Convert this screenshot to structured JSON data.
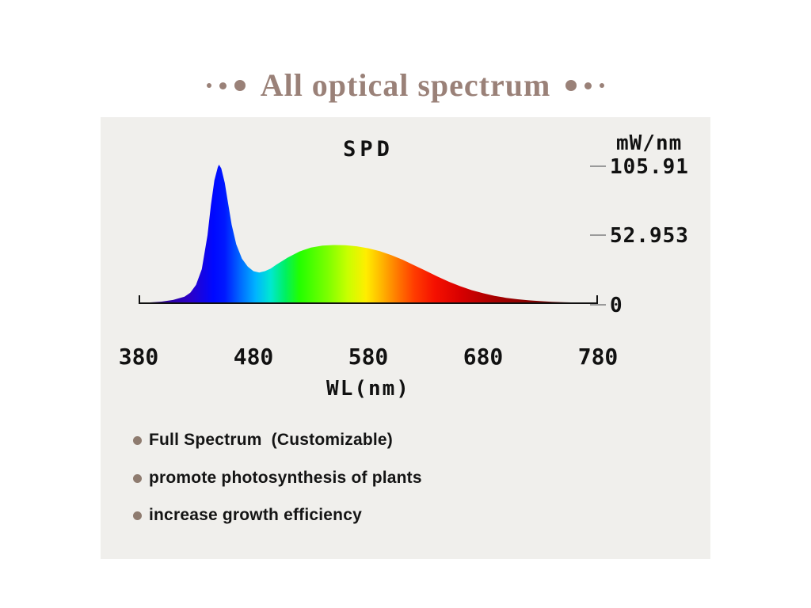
{
  "page": {
    "title": "All optical spectrum"
  },
  "chart": {
    "title": "SPD",
    "unit_label": "mW/nm",
    "xlabel": "WL(nm)",
    "x_ticks": [
      "380",
      "480",
      "580",
      "680",
      "780"
    ],
    "y_ticks": [
      "105.91",
      "52.953",
      "0"
    ]
  },
  "bullets": [
    {
      "label": "Full Spectrum  (Customizable)"
    },
    {
      "label": "promote photosynthesis of plants"
    },
    {
      "label": "increase growth efficiency"
    }
  ],
  "colors": {
    "title_accent": "#9a8178",
    "bullet_dot": "#8e7b6f",
    "panel_background": "#f0efec",
    "axis": "#111111"
  },
  "chart_data": {
    "type": "area",
    "title": "SPD",
    "xlabel": "WL(nm)",
    "ylabel": "mW/nm",
    "xlim": [
      380,
      780
    ],
    "ylim": [
      0,
      105.91
    ],
    "x_tick_values": [
      380,
      480,
      580,
      680,
      780
    ],
    "y_tick_values": [
      105.91,
      52.953,
      0
    ],
    "grid": false,
    "legend": false,
    "x": [
      380,
      390,
      400,
      410,
      420,
      425,
      430,
      435,
      440,
      443,
      446,
      449,
      450,
      452,
      455,
      458,
      461,
      465,
      470,
      475,
      480,
      485,
      490,
      495,
      500,
      510,
      520,
      530,
      540,
      550,
      560,
      570,
      580,
      590,
      600,
      610,
      620,
      630,
      640,
      650,
      660,
      670,
      680,
      690,
      700,
      710,
      720,
      730,
      740,
      750,
      760,
      770,
      780
    ],
    "values": [
      0.3,
      0.6,
      1.2,
      2.5,
      5,
      8,
      14,
      26,
      52,
      75,
      94,
      104,
      105.91,
      103,
      92,
      76,
      60,
      45,
      34,
      28,
      24.5,
      23.5,
      24.5,
      26.5,
      29.5,
      35,
      39.5,
      42.5,
      44,
      44.5,
      44.3,
      43.5,
      42,
      39.8,
      36.8,
      33.2,
      29,
      24.8,
      20.5,
      16.5,
      13,
      10,
      7.6,
      5.6,
      4.1,
      3,
      2.2,
      1.6,
      1.1,
      0.8,
      0.55,
      0.38,
      0.25
    ],
    "gradient_stops": [
      {
        "wavelength": 380,
        "color": "#30006a"
      },
      {
        "wavelength": 425,
        "color": "#2a00c8"
      },
      {
        "wavelength": 445,
        "color": "#0008ff"
      },
      {
        "wavelength": 455,
        "color": "#0018ff"
      },
      {
        "wavelength": 468,
        "color": "#0066ff"
      },
      {
        "wavelength": 482,
        "color": "#00b4ff"
      },
      {
        "wavelength": 495,
        "color": "#00e8d0"
      },
      {
        "wavelength": 508,
        "color": "#00f060"
      },
      {
        "wavelength": 520,
        "color": "#22ff00"
      },
      {
        "wavelength": 545,
        "color": "#7dff00"
      },
      {
        "wavelength": 562,
        "color": "#c8ff00"
      },
      {
        "wavelength": 578,
        "color": "#ffee00"
      },
      {
        "wavelength": 592,
        "color": "#ffb400"
      },
      {
        "wavelength": 606,
        "color": "#ff7600"
      },
      {
        "wavelength": 620,
        "color": "#ff3c00"
      },
      {
        "wavelength": 638,
        "color": "#f51000"
      },
      {
        "wavelength": 660,
        "color": "#d80000"
      },
      {
        "wavelength": 690,
        "color": "#a80000"
      },
      {
        "wavelength": 730,
        "color": "#7a0000"
      },
      {
        "wavelength": 780,
        "color": "#520000"
      }
    ]
  }
}
